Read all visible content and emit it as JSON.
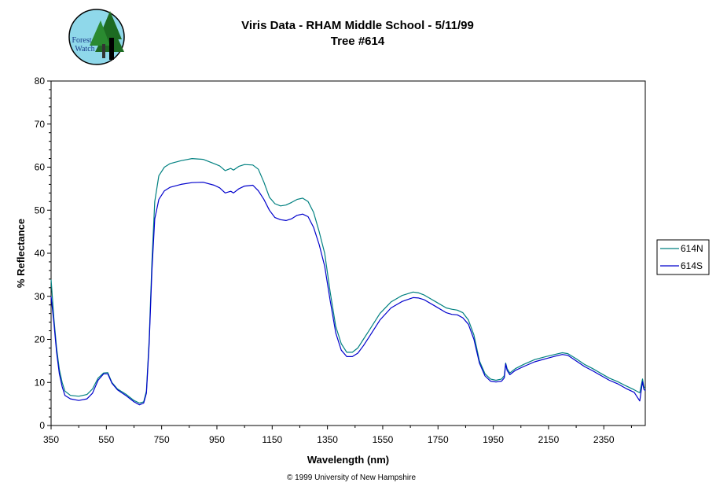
{
  "logo": {
    "line1": "Forest",
    "line2": "Watch"
  },
  "chart_data": {
    "type": "line",
    "title": "Viris Data - RHAM Middle School - 5/11/99",
    "subtitle": "Tree #614",
    "xlabel": "Wavelength (nm)",
    "ylabel": "% Reflectance",
    "xlim": [
      350,
      2500
    ],
    "ylim": [
      0,
      80
    ],
    "xticks": [
      "350",
      "550",
      "750",
      "950",
      "1150",
      "1350",
      "1550",
      "1750",
      "1950",
      "2150",
      "2350"
    ],
    "yticks": [
      "0",
      "10",
      "20",
      "30",
      "40",
      "50",
      "60",
      "70",
      "80"
    ],
    "grid": false,
    "legend_position": "right",
    "series": [
      {
        "name": "614N",
        "color": "#008080",
        "x": [
          350,
          360,
          370,
          380,
          390,
          400,
          420,
          450,
          480,
          500,
          520,
          540,
          555,
          570,
          590,
          620,
          650,
          670,
          685,
          695,
          705,
          715,
          725,
          740,
          760,
          780,
          820,
          860,
          900,
          940,
          960,
          980,
          1000,
          1010,
          1030,
          1050,
          1080,
          1100,
          1120,
          1140,
          1160,
          1180,
          1200,
          1220,
          1240,
          1260,
          1280,
          1300,
          1320,
          1340,
          1360,
          1380,
          1400,
          1420,
          1440,
          1460,
          1480,
          1500,
          1540,
          1580,
          1620,
          1660,
          1680,
          1700,
          1740,
          1780,
          1800,
          1820,
          1840,
          1860,
          1880,
          1900,
          1920,
          1940,
          1960,
          1980,
          1990,
          1995,
          2000,
          2010,
          2030,
          2060,
          2100,
          2140,
          2180,
          2200,
          2220,
          2250,
          2280,
          2310,
          2340,
          2370,
          2400,
          2430,
          2460,
          2480,
          2490,
          2495,
          2500
        ],
        "y": [
          33.9,
          25,
          18,
          13,
          10,
          8,
          7,
          6.8,
          7.2,
          8.5,
          11,
          12.2,
          12.3,
          10,
          8.5,
          7.3,
          5.8,
          5.2,
          5.5,
          8,
          20,
          38,
          52,
          58,
          60,
          60.8,
          61.5,
          62,
          61.8,
          60.8,
          60.3,
          59.2,
          59.7,
          59.3,
          60.2,
          60.6,
          60.5,
          59.5,
          56.5,
          53,
          51.5,
          51,
          51.2,
          51.8,
          52.5,
          52.8,
          52,
          49.5,
          45,
          40,
          31,
          23,
          19,
          17,
          17,
          18,
          20,
          22,
          26,
          28.7,
          30.2,
          31,
          30.8,
          30.3,
          28.8,
          27.3,
          27,
          26.8,
          26.2,
          24.5,
          21,
          15,
          12,
          10.8,
          10.5,
          10.8,
          11.6,
          14.5,
          13.2,
          12.2,
          13.2,
          14.2,
          15.3,
          16,
          16.6,
          16.9,
          16.7,
          15.5,
          14.2,
          13.2,
          12.1,
          11,
          10.2,
          9.2,
          8.3,
          7.6,
          10.8,
          9,
          8.6
        ]
      },
      {
        "name": "614S",
        "color": "#0000cc",
        "x": [
          350,
          360,
          370,
          380,
          390,
          400,
          420,
          450,
          480,
          500,
          520,
          540,
          555,
          570,
          590,
          620,
          650,
          670,
          685,
          695,
          705,
          715,
          725,
          740,
          760,
          780,
          820,
          860,
          900,
          940,
          960,
          980,
          1000,
          1010,
          1030,
          1050,
          1080,
          1100,
          1120,
          1140,
          1160,
          1180,
          1200,
          1220,
          1240,
          1260,
          1280,
          1300,
          1320,
          1340,
          1360,
          1380,
          1400,
          1420,
          1440,
          1460,
          1480,
          1500,
          1540,
          1580,
          1620,
          1660,
          1680,
          1700,
          1740,
          1780,
          1800,
          1820,
          1840,
          1860,
          1880,
          1900,
          1920,
          1940,
          1960,
          1980,
          1990,
          1995,
          2000,
          2010,
          2030,
          2060,
          2100,
          2140,
          2180,
          2200,
          2220,
          2250,
          2280,
          2310,
          2340,
          2370,
          2400,
          2430,
          2460,
          2480,
          2490,
          2495,
          2500
        ],
        "y": [
          30,
          24,
          17,
          12,
          9,
          7,
          6.2,
          5.8,
          6.2,
          7.5,
          10.5,
          12,
          12,
          9.8,
          8.3,
          7,
          5.5,
          4.8,
          5.2,
          7.5,
          19,
          36,
          48,
          52.5,
          54.5,
          55.3,
          56,
          56.4,
          56.5,
          55.8,
          55.2,
          54,
          54.4,
          54,
          55,
          55.6,
          55.8,
          54.5,
          52.5,
          50,
          48.3,
          47.8,
          47.6,
          48,
          48.8,
          49.1,
          48.5,
          46,
          42,
          37,
          29,
          21.5,
          17.5,
          16,
          16,
          16.8,
          18.5,
          20.5,
          24.5,
          27.3,
          28.8,
          29.7,
          29.6,
          29.2,
          27.7,
          26.2,
          25.8,
          25.7,
          25,
          23.5,
          20,
          14.5,
          11.5,
          10.3,
          10.1,
          10.3,
          11.1,
          14.3,
          12.8,
          11.8,
          12.8,
          13.7,
          14.8,
          15.5,
          16.2,
          16.5,
          16.3,
          15,
          13.7,
          12.7,
          11.6,
          10.5,
          9.7,
          8.6,
          7.7,
          5.7,
          10.2,
          8.4,
          8.1
        ]
      }
    ],
    "credit": "© 1999 University of New Hampshire"
  }
}
